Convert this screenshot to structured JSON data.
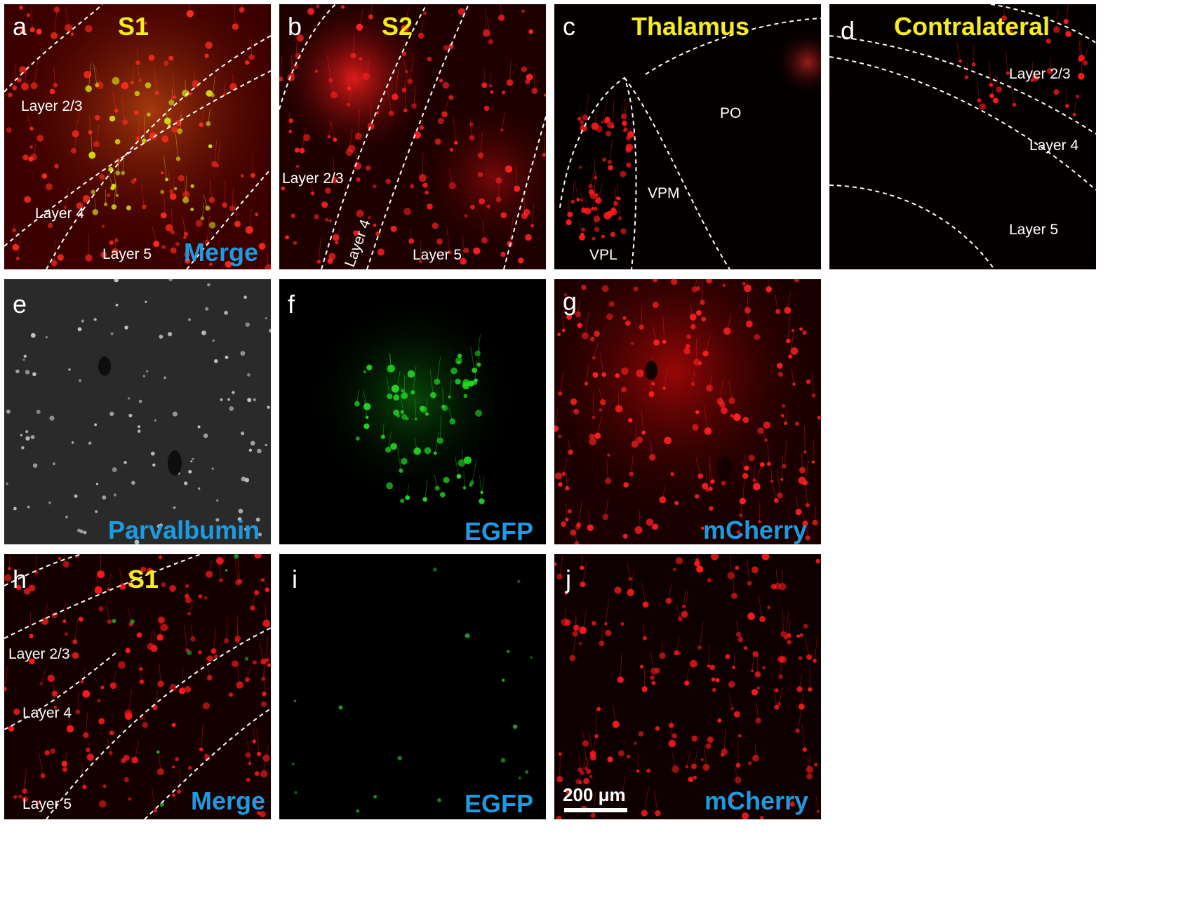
{
  "colors": {
    "region_label": "#f5ee1a",
    "channel_label": "#1e9be0",
    "mcherry": "#ff1a1a",
    "egfp": "#22e022",
    "parvalbumin": "#d8d8d8"
  },
  "panels": {
    "a": {
      "letter": "a",
      "region": "S1",
      "channel": "Merge",
      "layers": [
        "Layer 2/3",
        "Layer 4",
        "Layer 5"
      ]
    },
    "b": {
      "letter": "b",
      "region": "S2",
      "layers": [
        "Layer 2/3",
        "Layer 4",
        "Layer 5"
      ]
    },
    "c": {
      "letter": "c",
      "region": "Thalamus",
      "nuclei": [
        "PO",
        "VPM",
        "VPL"
      ]
    },
    "d": {
      "letter": "d",
      "region": "Contralateral",
      "layers": [
        "Layer 2/3",
        "Layer 4",
        "Layer 5"
      ]
    },
    "e": {
      "letter": "e",
      "channel": "Parvalbumin"
    },
    "f": {
      "letter": "f",
      "channel": "EGFP"
    },
    "g": {
      "letter": "g",
      "channel": "mCherry"
    },
    "h": {
      "letter": "h",
      "region": "S1",
      "channel": "Merge",
      "layers": [
        "Layer 2/3",
        "Layer 4",
        "Layer 5"
      ]
    },
    "i": {
      "letter": "i",
      "channel": "EGFP"
    },
    "j": {
      "letter": "j",
      "channel": "mCherry",
      "scale_bar": "200 μm"
    }
  }
}
